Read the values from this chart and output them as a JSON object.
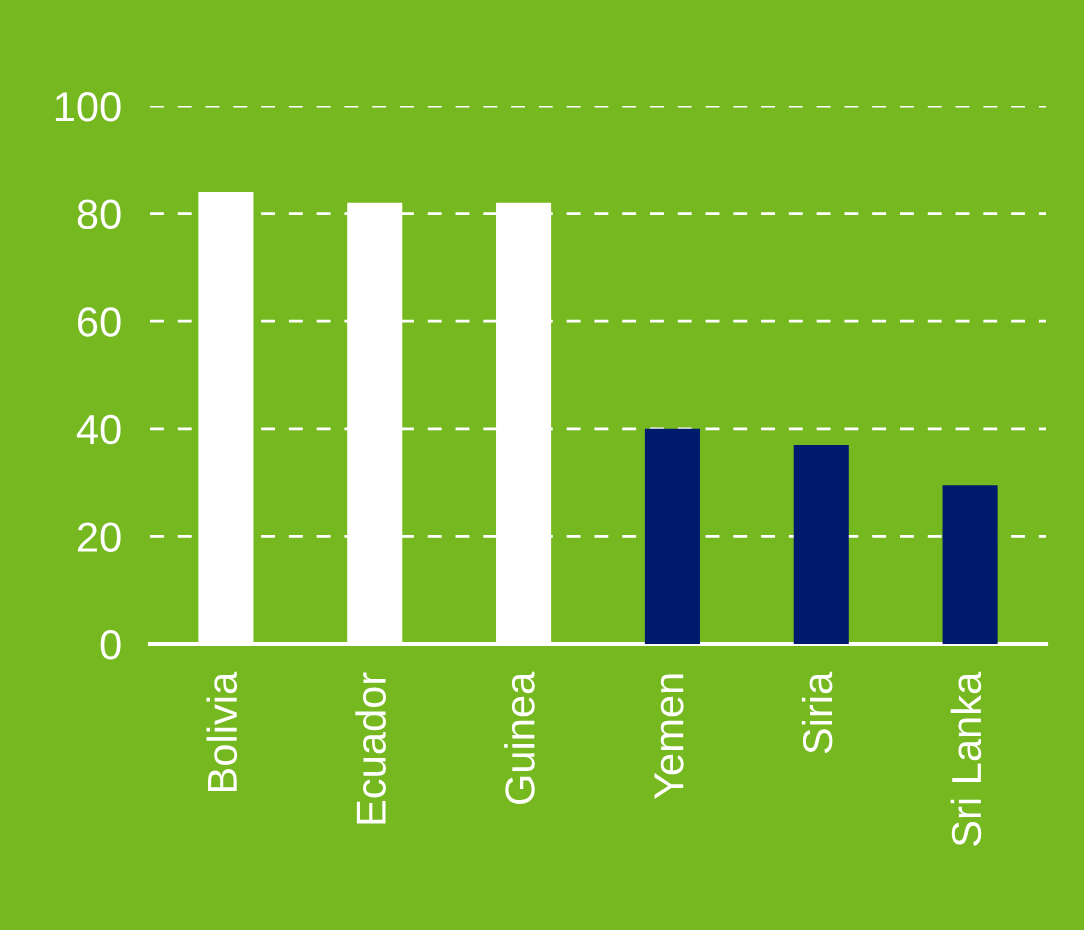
{
  "chart_data": {
    "type": "bar",
    "categories": [
      "Bolivia",
      "Ecuador",
      "Guinea",
      "Yemen",
      "Siria",
      "Sri Lanka"
    ],
    "values": [
      84,
      82,
      82,
      40,
      37,
      29.5
    ],
    "colors": [
      "#ffffff",
      "#ffffff",
      "#ffffff",
      "#001a6e",
      "#001a6e",
      "#001a6e"
    ],
    "ylim": [
      0,
      100
    ],
    "yticks": [
      0,
      20,
      40,
      60,
      80,
      100
    ],
    "grid": "y"
  }
}
